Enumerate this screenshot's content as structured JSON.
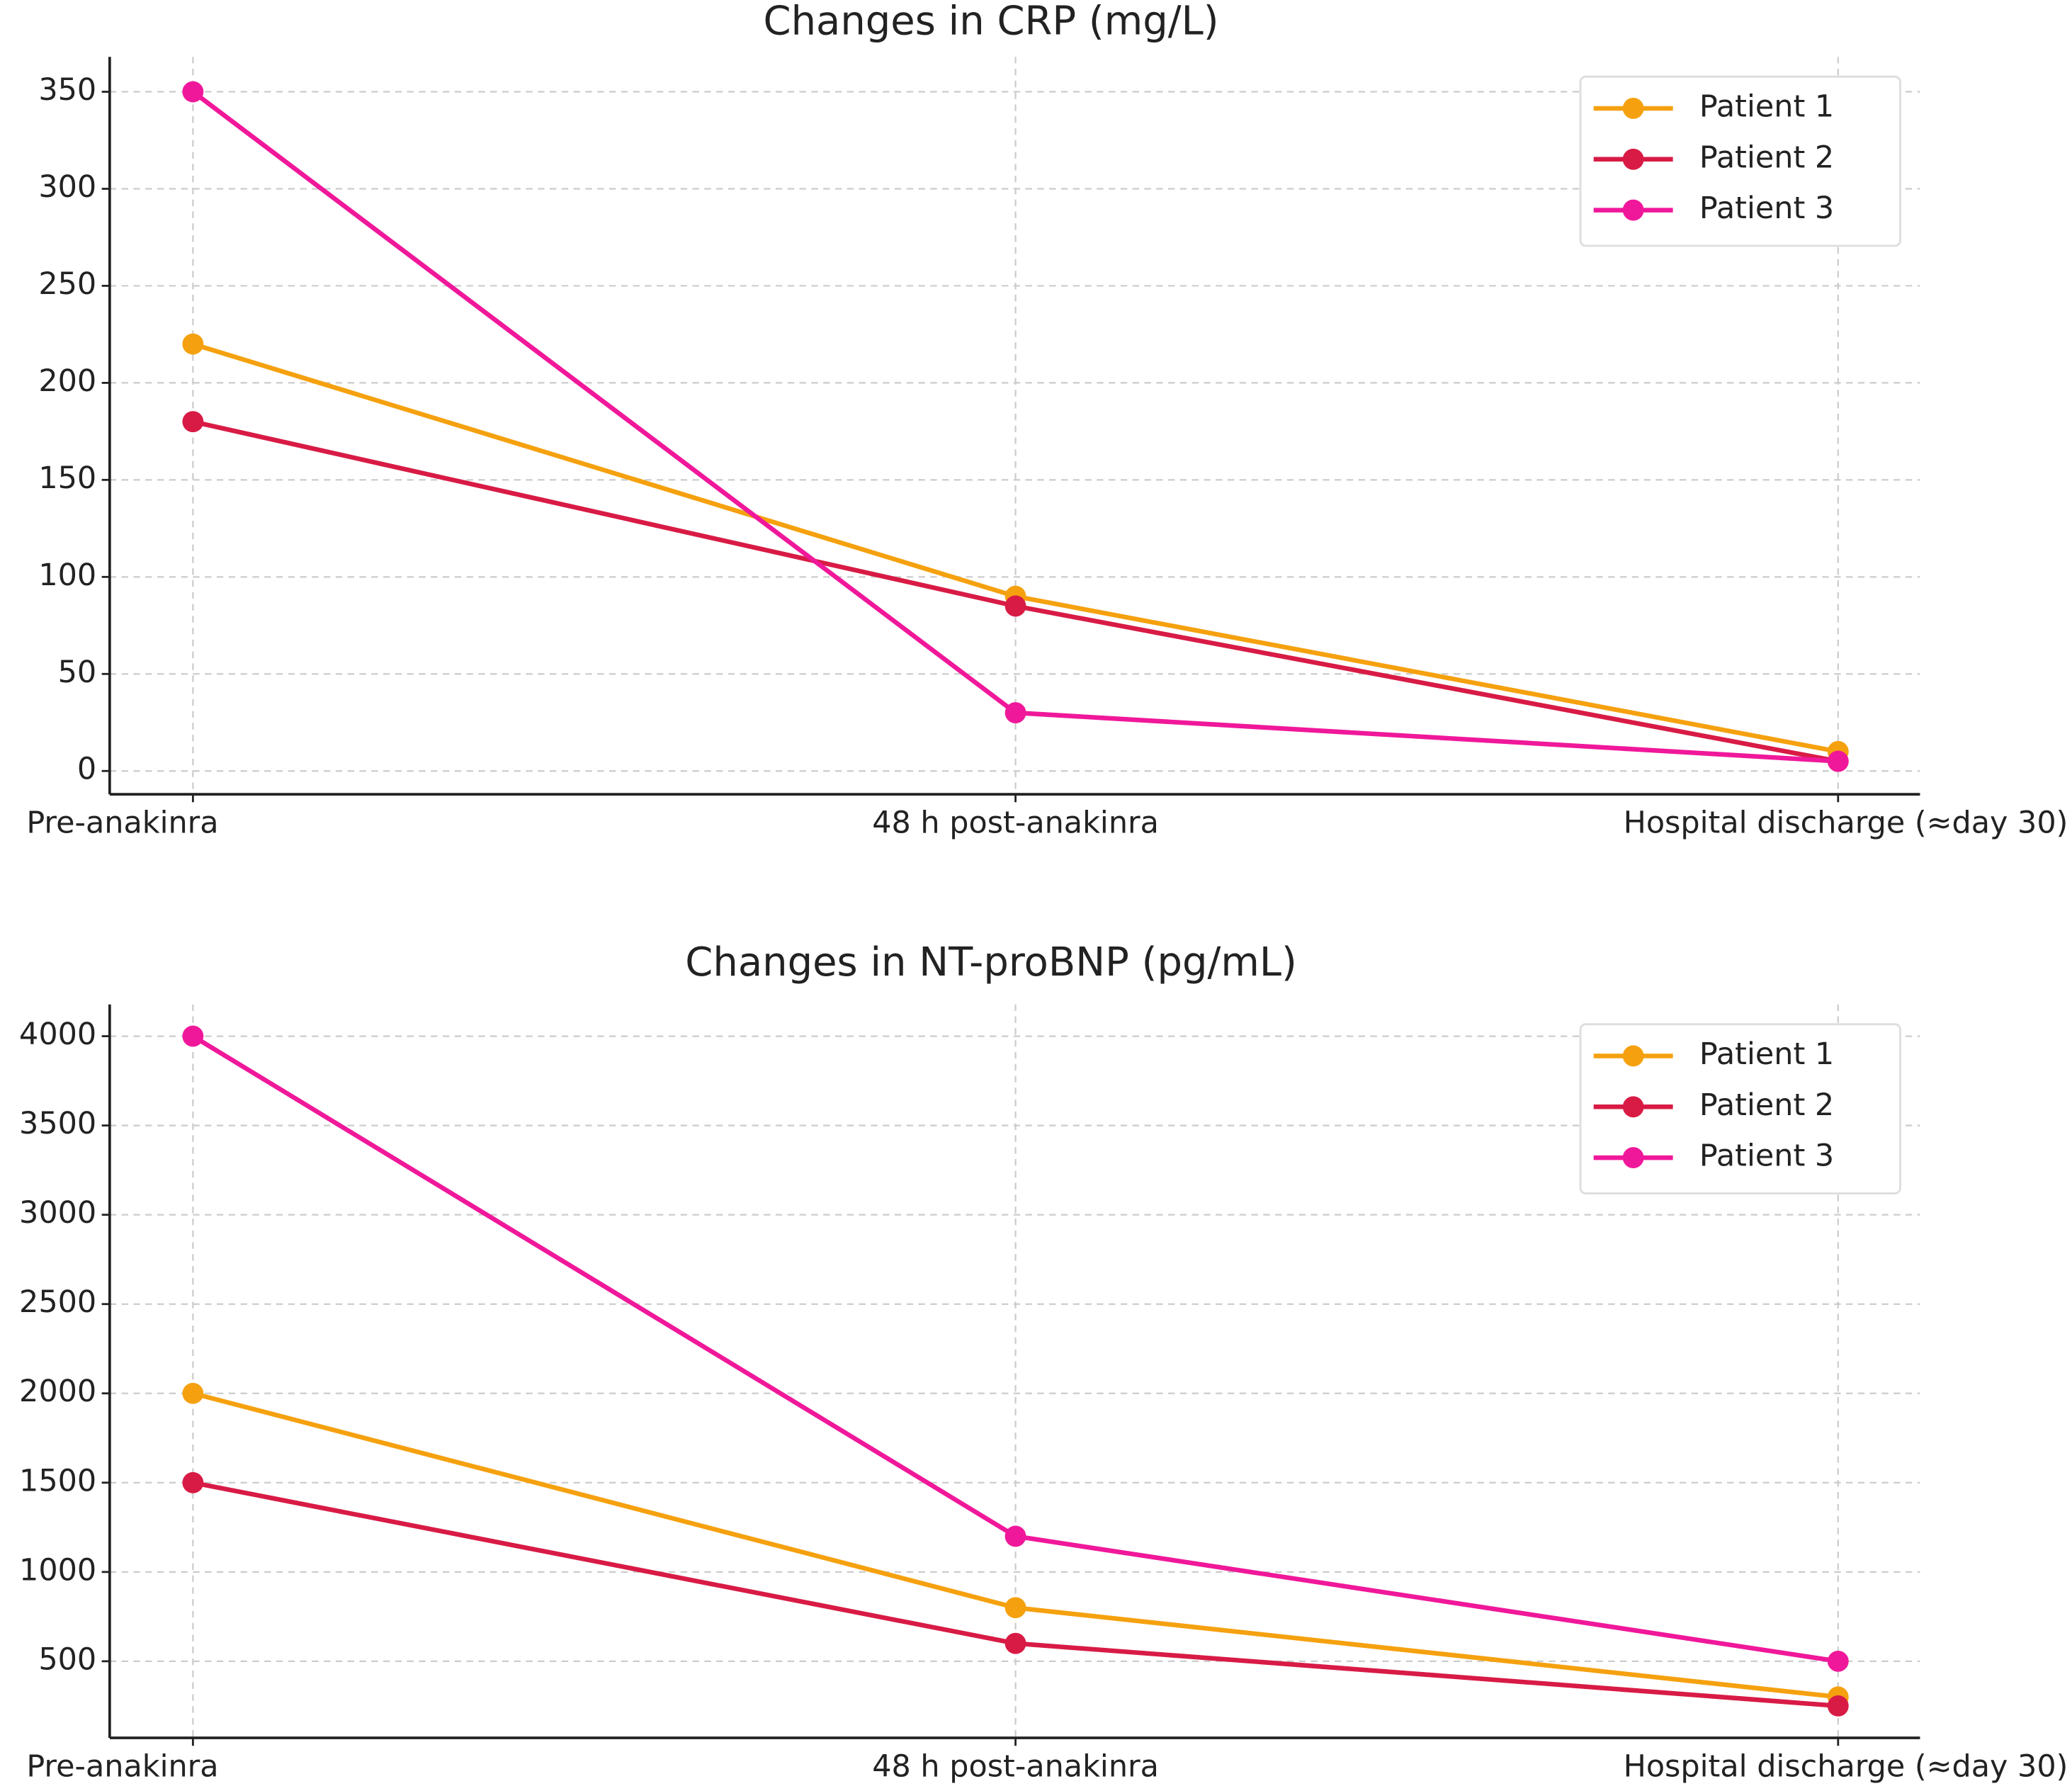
{
  "chart_data": [
    {
      "type": "line",
      "title": "Changes in CRP (mg/L)",
      "categories": [
        "Pre-anakinra",
        "48 h post-anakinra",
        "Hospital discharge (≈day 30)"
      ],
      "series": [
        {
          "name": "Patient 1",
          "color": "#f5a10f",
          "values": [
            220,
            90,
            10
          ]
        },
        {
          "name": "Patient 2",
          "color": "#d81b45",
          "values": [
            180,
            85,
            5
          ]
        },
        {
          "name": "Patient 3",
          "color": "#f0189a",
          "values": [
            350,
            30,
            5
          ]
        }
      ],
      "ylim": [
        -12,
        368
      ],
      "yticks": [
        0,
        50,
        100,
        150,
        200,
        250,
        300,
        350
      ],
      "grid": true,
      "legend": "upper right"
    },
    {
      "type": "line",
      "title": "Changes in NT-proBNP (pg/mL)",
      "categories": [
        "Pre-anakinra",
        "48 h post-anakinra",
        "Hospital discharge (≈day 30)"
      ],
      "series": [
        {
          "name": "Patient 1",
          "color": "#f5a10f",
          "values": [
            2000,
            800,
            300
          ]
        },
        {
          "name": "Patient 2",
          "color": "#d81b45",
          "values": [
            1500,
            600,
            250
          ]
        },
        {
          "name": "Patient 3",
          "color": "#f0189a",
          "values": [
            4000,
            1200,
            500
          ]
        }
      ],
      "ylim": [
        71,
        4178
      ],
      "yticks": [
        500,
        1000,
        1500,
        2000,
        2500,
        3000,
        3500,
        4000
      ],
      "grid": true,
      "legend": "upper right"
    }
  ]
}
